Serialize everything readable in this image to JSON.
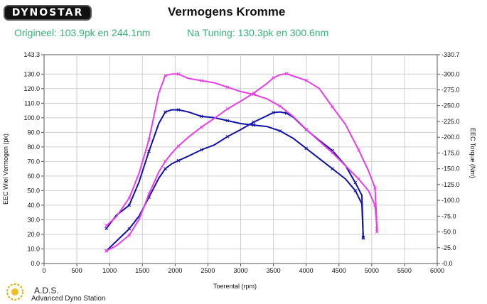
{
  "header": {
    "logo_text": "DYNOSTAR",
    "title": "Vermogens Kromme",
    "original_label": "Origineel: 103.9pk en 244.1nm",
    "tuned_label": "Na Tuning: 130.3pk en 300.6nm"
  },
  "footer": {
    "brand": "A.D.S.",
    "brand_sub": "Advanced Dyno Station"
  },
  "colors": {
    "original": "#1111aa",
    "tuned": "#e83ee8",
    "grid": "#cfcfcf",
    "subtitle": "#3daf78"
  },
  "chart_data": {
    "type": "line",
    "xlabel": "Toerental (rpm)",
    "ylabel_left": "EEC Wiel Vermogen (pk)",
    "ylabel_right": "EEC Torque (Nm)",
    "xlim": [
      0,
      6000
    ],
    "ylim_left": [
      0,
      143.3
    ],
    "ylim_right": [
      0,
      330.7
    ],
    "x_ticks": [
      "0",
      "500",
      "1000",
      "1500",
      "2000",
      "2500",
      "3000",
      "3500",
      "4000",
      "4500",
      "5000",
      "5500",
      "6000"
    ],
    "y_left_ticks": [
      "0.0",
      "10.0",
      "20.0",
      "30.0",
      "40.0",
      "50.0",
      "60.0",
      "70.0",
      "80.0",
      "90.0",
      "100.0",
      "110.0",
      "120.0",
      "130.0",
      "143.3"
    ],
    "y_right_ticks": [
      "-0.0",
      "-25.0",
      "-50.0",
      "-75.0",
      "-100.0",
      "-125.0",
      "-150.0",
      "-175.0",
      "-200.0",
      "-225.0",
      "-250.0",
      "-275.0",
      "-300.0",
      "-330.7"
    ],
    "grid": true,
    "series": [
      {
        "name": "Origineel vermogen",
        "axis": "left",
        "color": "#1111aa",
        "x": [
          950,
          1100,
          1300,
          1450,
          1600,
          1750,
          1850,
          1950,
          2050,
          2200,
          2400,
          2600,
          2800,
          3000,
          3200,
          3400,
          3600,
          3800,
          4000,
          4200,
          4400,
          4600,
          4750,
          4850,
          4870
        ],
        "y": [
          24,
          33,
          40,
          56,
          77,
          96,
          104,
          105.5,
          105.5,
          104,
          101,
          100,
          98,
          96,
          95,
          94,
          91,
          86,
          79,
          72,
          65,
          58,
          50,
          41,
          18
        ]
      },
      {
        "name": "Origineel koppel",
        "axis": "right",
        "color": "#1111aa",
        "x": [
          950,
          1100,
          1300,
          1450,
          1600,
          1750,
          1850,
          1950,
          2050,
          2200,
          2400,
          2600,
          2800,
          3000,
          3200,
          3400,
          3500,
          3600,
          3700,
          3800,
          4000,
          4200,
          4400,
          4600,
          4750,
          4850,
          4870
        ],
        "y": [
          20,
          35,
          55,
          75,
          105,
          135,
          150,
          158,
          163,
          170,
          180,
          188,
          201,
          212,
          224,
          234,
          239,
          240,
          238,
          232,
          212,
          195,
          179,
          155,
          128,
          108,
          40
        ]
      },
      {
        "name": "Na Tuning vermogen",
        "axis": "left",
        "color": "#e83ee8",
        "x": [
          950,
          1100,
          1300,
          1450,
          1600,
          1750,
          1850,
          1950,
          2050,
          2200,
          2400,
          2600,
          2800,
          3000,
          3200,
          3400,
          3600,
          3800,
          4000,
          4200,
          4400,
          4600,
          4800,
          4950,
          5050,
          5070,
          5080
        ],
        "y": [
          26,
          32,
          45,
          62,
          85,
          117,
          129,
          130,
          130,
          127,
          125.5,
          124,
          121,
          118,
          116,
          113,
          108,
          101,
          92,
          84,
          76,
          67,
          58,
          50,
          40,
          30,
          24
        ]
      },
      {
        "name": "Na Tuning koppel",
        "axis": "right",
        "color": "#e83ee8",
        "x": [
          950,
          1100,
          1300,
          1450,
          1600,
          1750,
          1850,
          1950,
          2050,
          2200,
          2400,
          2600,
          2800,
          3000,
          3200,
          3400,
          3500,
          3600,
          3700,
          3800,
          4000,
          4200,
          4400,
          4600,
          4800,
          4950,
          5050,
          5070,
          5080
        ],
        "y": [
          20,
          28,
          45,
          70,
          110,
          145,
          162,
          175,
          186,
          200,
          216,
          230,
          245,
          257,
          270,
          285,
          294,
          299,
          300.6,
          297,
          290,
          277,
          248,
          220,
          180,
          147,
          120,
          80,
          50
        ]
      }
    ]
  }
}
